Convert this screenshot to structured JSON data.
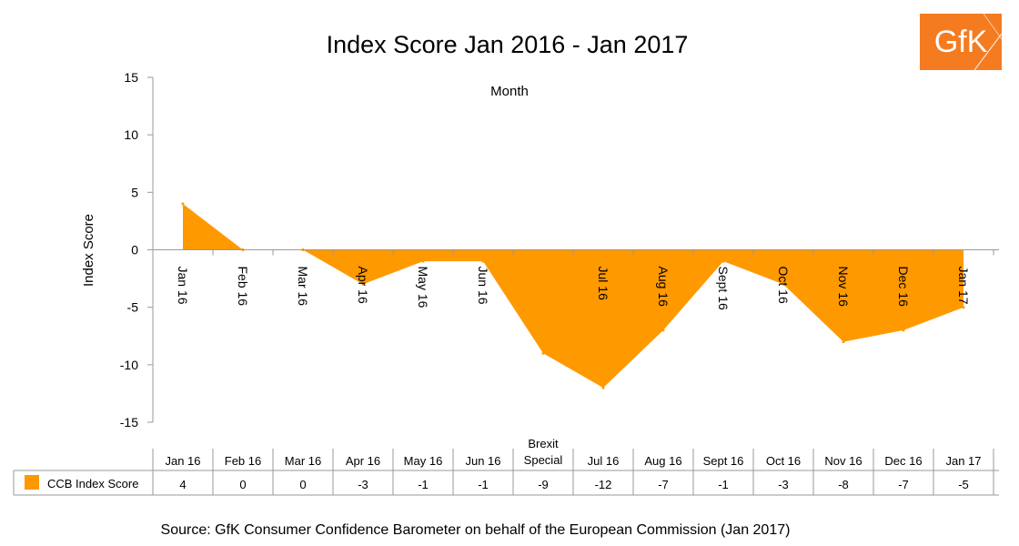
{
  "title": "Index Score Jan 2016 - Jan 2017",
  "logo": {
    "text": "GfK",
    "color": "#f47b20"
  },
  "source": "Source: GfK Consumer Confidence Barometer on behalf of the European Commission (Jan 2017)",
  "chart_data": {
    "type": "area",
    "title": "Index Score Jan 2016 - Jan 2017",
    "xlabel": "Month",
    "ylabel": "Index Score",
    "categories": [
      "Jan 16",
      "Feb 16",
      "Mar 16",
      "Apr 16",
      "May 16",
      "Jun 16",
      "Brexit Special",
      "Jul 16",
      "Aug 16",
      "Sept 16",
      "Oct 16",
      "Nov 16",
      "Dec 16",
      "Jan 17"
    ],
    "axis_tick_labels": [
      "Jan 16",
      "Feb 16",
      "Mar 16",
      "Apr 16",
      "May 16",
      "Jun 16",
      "",
      "Jul 16",
      "Aug 16",
      "Sept 16",
      "Oct 16",
      "Nov 16",
      "Dec 16",
      "Jan 17"
    ],
    "series": [
      {
        "name": "CCB Index Score",
        "color": "#ff9900",
        "values": [
          4,
          0,
          0,
          -3,
          -1,
          -1,
          -9,
          -12,
          -7,
          -1,
          -3,
          -8,
          -7,
          -5
        ]
      }
    ],
    "ylim": [
      -15,
      15
    ],
    "yticks": [
      15,
      10,
      5,
      0,
      -5,
      -10,
      -15
    ],
    "grid": false,
    "legend": "data table below chart"
  }
}
